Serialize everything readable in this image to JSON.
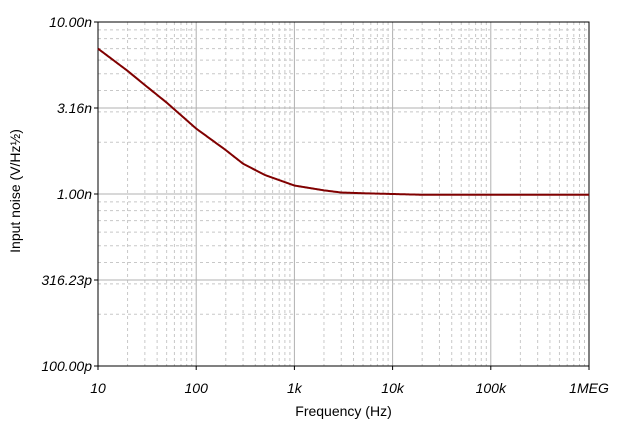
{
  "chart_data": {
    "type": "line",
    "xscale": "log",
    "yscale": "log",
    "xlabel": "Frequency (Hz)",
    "ylabel": "Input noise (V/Hz½)",
    "xlim": [
      10,
      1000000
    ],
    "ylim": [
      1e-10,
      1e-08
    ],
    "grid": true,
    "x_tick_labels": [
      "10",
      "100",
      "1k",
      "10k",
      "100k",
      "1MEG"
    ],
    "y_tick_labels": [
      "10.00n",
      "3.16n",
      "1.00n",
      "316.23p",
      "100.00p"
    ],
    "series": [
      {
        "color": "#800000",
        "x": [
          10,
          20,
          30,
          50,
          100,
          200,
          300,
          500,
          1000,
          2000,
          3000,
          5000,
          10000,
          20000,
          50000,
          100000,
          1000000
        ],
        "y": [
          7e-09,
          5.2e-09,
          4.3e-09,
          3.4e-09,
          2.4e-09,
          1.8e-09,
          1.5e-09,
          1.29e-09,
          1.12e-09,
          1.05e-09,
          1.02e-09,
          1.01e-09,
          1e-09,
          9.9e-10,
          9.9e-10,
          9.9e-10,
          9.9e-10
        ]
      }
    ]
  }
}
